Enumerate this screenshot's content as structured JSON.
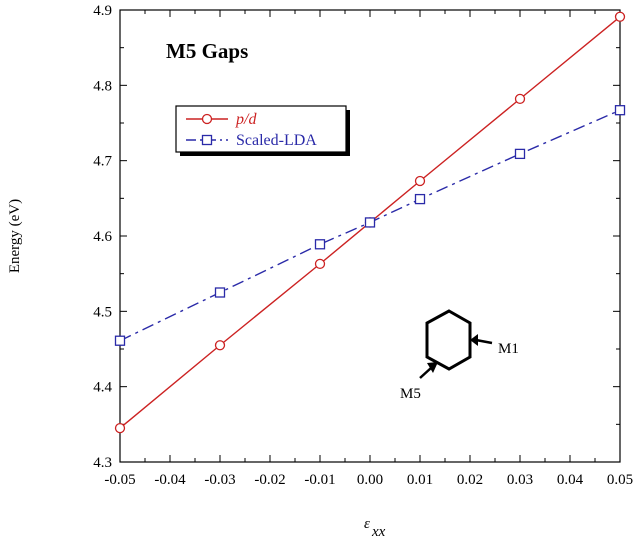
{
  "chart_data": {
    "type": "line",
    "title": "M5 Gaps",
    "xlabel": "ε",
    "xlabel_sub": "xx",
    "ylabel": "Energy (eV)",
    "xlim": [
      -0.05,
      0.05
    ],
    "ylim": [
      4.3,
      4.9
    ],
    "xticks": [
      "-0.05",
      "-0.04",
      "-0.03",
      "-0.02",
      "-0.01",
      "0.00",
      "0.01",
      "0.02",
      "0.03",
      "0.04",
      "0.05"
    ],
    "yticks": [
      "4.3",
      "4.4",
      "4.5",
      "4.6",
      "4.7",
      "4.8",
      "4.9"
    ],
    "grid": false,
    "legend_position": "top-left",
    "series": [
      {
        "name": "p/d",
        "color": "#cc2222",
        "marker": "circle",
        "linestyle": "solid",
        "x": [
          -0.05,
          -0.03,
          -0.01,
          0.0,
          0.01,
          0.03,
          0.05
        ],
        "y": [
          4.345,
          4.455,
          4.563,
          4.618,
          4.673,
          4.782,
          4.891
        ]
      },
      {
        "name": "Scaled-LDA",
        "color": "#2a2aa8",
        "marker": "square",
        "linestyle": "dashdot",
        "x": [
          -0.05,
          -0.03,
          -0.01,
          0.0,
          0.01,
          0.03,
          0.05
        ],
        "y": [
          4.461,
          4.525,
          4.589,
          4.618,
          4.649,
          4.709,
          4.767
        ]
      }
    ],
    "annotations": [
      "M1",
      "M5"
    ],
    "inset_icon": "hexagon-icon"
  }
}
